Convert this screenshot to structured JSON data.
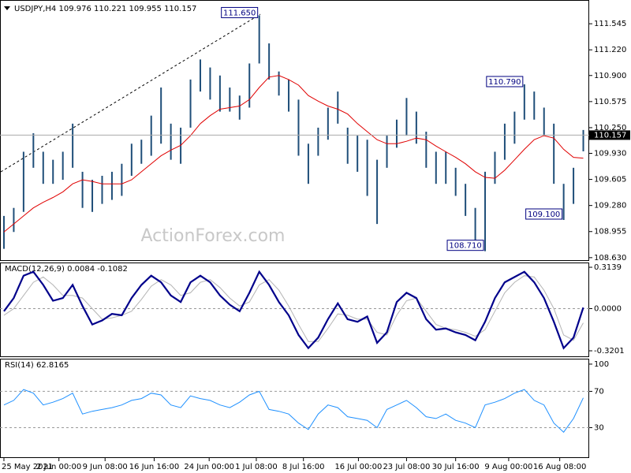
{
  "chart_data": [
    {
      "type": "range_bar",
      "title": "USDJPY,H4  109.976 110.221 109.955 110.157",
      "watermark": "ActionForex.com",
      "color": "#1f4e79",
      "xlim": [
        -0.4,
        59.6
      ],
      "ylim": [
        108.589,
        111.841
      ],
      "yticks": [
        111.545,
        {
          "value": 111.22,
          "label": "111.220"
        },
        {
          "value": 110.9,
          "label": "110.900"
        },
        110.575,
        {
          "value": 110.25,
          "label": "110.250"
        },
        {
          "value": 109.93,
          "label": "109.930"
        },
        109.605,
        {
          "value": 109.28,
          "label": "109.280"
        },
        108.955,
        {
          "value": 108.63,
          "label": "108.630"
        }
      ],
      "high": [
        109.15,
        109.25,
        109.95,
        110.18,
        109.95,
        109.85,
        109.95,
        110.3,
        109.7,
        109.6,
        109.65,
        109.7,
        109.8,
        110.05,
        110.1,
        110.4,
        110.75,
        110.3,
        110.25,
        110.85,
        111.1,
        111.0,
        110.9,
        110.75,
        110.65,
        111.05,
        111.65,
        111.3,
        110.95,
        110.85,
        110.6,
        110.05,
        110.25,
        110.5,
        110.7,
        110.25,
        110.15,
        110.1,
        109.85,
        110.15,
        110.35,
        110.62,
        110.45,
        110.2,
        109.95,
        109.95,
        109.75,
        109.55,
        109.25,
        109.7,
        109.95,
        110.3,
        110.45,
        110.79,
        110.7,
        110.5,
        110.3,
        109.55,
        109.75,
        110.221
      ],
      "low": [
        108.74,
        108.95,
        109.2,
        109.75,
        109.55,
        109.55,
        109.6,
        109.75,
        109.25,
        109.2,
        109.3,
        109.35,
        109.4,
        109.65,
        109.8,
        109.9,
        110.05,
        109.85,
        109.8,
        110.25,
        110.7,
        110.6,
        110.45,
        110.45,
        110.35,
        110.5,
        111.05,
        110.85,
        110.65,
        110.45,
        109.9,
        109.55,
        109.9,
        110.1,
        110.3,
        109.8,
        109.7,
        109.4,
        109.05,
        109.75,
        110.0,
        110.15,
        110.05,
        109.75,
        109.55,
        109.55,
        109.4,
        109.15,
        108.85,
        108.71,
        109.55,
        109.85,
        110.05,
        110.35,
        110.35,
        110.15,
        109.55,
        109.1,
        109.3,
        109.955
      ],
      "series": [
        {
          "color": "#e00000",
          "values": [
            108.95,
            109.05,
            109.15,
            109.25,
            109.32,
            109.38,
            109.45,
            109.55,
            109.6,
            109.58,
            109.55,
            109.55,
            109.55,
            109.6,
            109.7,
            109.8,
            109.9,
            109.97,
            110.03,
            110.15,
            110.3,
            110.4,
            110.48,
            110.5,
            110.52,
            110.6,
            110.75,
            110.88,
            110.9,
            110.85,
            110.78,
            110.65,
            110.58,
            110.52,
            110.48,
            110.42,
            110.3,
            110.2,
            110.1,
            110.05,
            110.05,
            110.08,
            110.12,
            110.1,
            110.02,
            109.95,
            109.88,
            109.8,
            109.7,
            109.63,
            109.62,
            109.72,
            109.85,
            109.98,
            110.1,
            110.15,
            110.12,
            109.98,
            109.88,
            109.87
          ]
        }
      ],
      "last": 110.157,
      "annotations": [
        {
          "x": 26,
          "value": 111.65,
          "label": "111.650"
        },
        {
          "x": 53,
          "value": 110.79,
          "label": "110.790"
        },
        {
          "x": 57,
          "value": 109.1,
          "label": "109.100"
        },
        {
          "x": 49,
          "value": 108.71,
          "label": "108.710"
        }
      ]
    },
    {
      "type": "macd",
      "title": "MACD(12,26,9) 0.0084 -0.1082",
      "xlim": [
        -0.4,
        59.6
      ],
      "ylim": [
        -0.368,
        0.35
      ],
      "yticks": [
        0.3139,
        {
          "value": 0,
          "label": "0.0000"
        },
        -0.3201
      ],
      "series": [
        {
          "color": "#00008b",
          "values": [
            -0.02,
            0.08,
            0.25,
            0.28,
            0.18,
            0.06,
            0.08,
            0.18,
            0.02,
            -0.12,
            -0.09,
            -0.04,
            -0.05,
            0.08,
            0.18,
            0.25,
            0.2,
            0.1,
            0.05,
            0.2,
            0.25,
            0.2,
            0.1,
            0.03,
            -0.02,
            0.12,
            0.28,
            0.18,
            0.05,
            -0.05,
            -0.2,
            -0.3,
            -0.22,
            -0.08,
            0.04,
            -0.08,
            -0.1,
            -0.06,
            -0.26,
            -0.18,
            0.05,
            0.12,
            0.08,
            -0.08,
            -0.16,
            -0.15,
            -0.18,
            -0.2,
            -0.24,
            -0.1,
            0.08,
            0.2,
            0.24,
            0.28,
            0.2,
            0.08,
            -0.1,
            -0.3,
            -0.22,
            0.0084
          ]
        },
        {
          "color": "#b4b4b4",
          "values": [
            -0.05,
            0.0,
            0.1,
            0.2,
            0.24,
            0.18,
            0.1,
            0.1,
            0.08,
            0.0,
            -0.08,
            -0.07,
            -0.05,
            -0.02,
            0.07,
            0.17,
            0.22,
            0.18,
            0.1,
            0.12,
            0.2,
            0.22,
            0.16,
            0.08,
            0.02,
            0.05,
            0.18,
            0.22,
            0.14,
            0.02,
            -0.12,
            -0.25,
            -0.25,
            -0.15,
            -0.04,
            -0.05,
            -0.08,
            -0.08,
            -0.18,
            -0.2,
            -0.05,
            0.06,
            0.08,
            -0.02,
            -0.12,
            -0.15,
            -0.16,
            -0.18,
            -0.21,
            -0.16,
            -0.02,
            0.12,
            0.2,
            0.25,
            0.24,
            0.14,
            0.0,
            -0.2,
            -0.24,
            -0.1082
          ]
        }
      ]
    },
    {
      "type": "rsi",
      "title": "RSI(14) 62.8165",
      "xlim": [
        -0.4,
        59.6
      ],
      "ylim": [
        -3.5,
        106
      ],
      "yticks": [
        100,
        70,
        30
      ],
      "series": [
        {
          "color": "#1e90ff",
          "values": [
            55,
            60,
            72,
            68,
            55,
            58,
            62,
            68,
            45,
            48,
            50,
            52,
            55,
            60,
            62,
            68,
            66,
            55,
            52,
            65,
            62,
            60,
            55,
            52,
            58,
            66,
            70,
            50,
            48,
            45,
            35,
            28,
            45,
            55,
            52,
            42,
            40,
            38,
            30,
            50,
            55,
            60,
            52,
            42,
            40,
            45,
            38,
            35,
            30,
            55,
            58,
            62,
            68,
            72,
            60,
            55,
            35,
            25,
            40,
            62.8165
          ]
        }
      ],
      "xticks": [
        {
          "value": 0,
          "label": "25 May 2021"
        },
        {
          "value": 5.6,
          "label": "2 Jun 00:00"
        },
        {
          "value": 10.3,
          "label": "9 Jun 08:00"
        },
        {
          "value": 15.3,
          "label": "16 Jun 16:00"
        },
        {
          "value": 20.9,
          "label": "24 Jun 00:00"
        },
        {
          "value": 25.7,
          "label": "1 Jul 08:00"
        },
        {
          "value": 30.5,
          "label": "8 Jul 16:00"
        },
        {
          "value": 36.1,
          "label": "16 Jul 00:00"
        },
        {
          "value": 41,
          "label": "23 Jul 08:00"
        },
        {
          "value": 46,
          "label": "30 Jul 16:00"
        },
        {
          "value": 51.4,
          "label": "9 Aug 00:00"
        },
        {
          "value": 56.6,
          "label": "16 Aug 08:00"
        }
      ]
    }
  ]
}
